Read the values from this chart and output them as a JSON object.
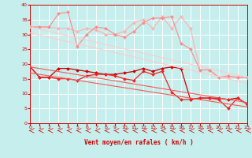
{
  "xlabel": "Vent moyen/en rafales ( km/h )",
  "xlim": [
    0,
    23
  ],
  "ylim": [
    0,
    40
  ],
  "yticks": [
    0,
    5,
    10,
    15,
    20,
    25,
    30,
    35,
    40
  ],
  "xticks": [
    0,
    1,
    2,
    3,
    4,
    5,
    6,
    7,
    8,
    9,
    10,
    11,
    12,
    13,
    14,
    15,
    16,
    17,
    18,
    19,
    20,
    21,
    22,
    23
  ],
  "bg_color": "#c5eeec",
  "grid_color": "#ffffff",
  "series": [
    {
      "x": [
        0,
        1,
        2,
        3,
        4,
        5,
        6,
        7,
        8,
        9,
        10,
        11,
        12,
        13,
        14,
        15,
        16,
        17,
        18,
        19,
        20,
        21,
        22,
        23
      ],
      "y": [
        32.5,
        32.5,
        32.5,
        32.0,
        32.0,
        31.0,
        32.0,
        31.5,
        30.0,
        30.0,
        31.0,
        34.0,
        35.0,
        32.0,
        36.0,
        32.0,
        36.0,
        32.0,
        18.0,
        18.0,
        15.5,
        15.5,
        15.5,
        15.5
      ],
      "color": "#ffb0b0",
      "marker": "D",
      "markersize": 2,
      "linewidth": 0.8
    },
    {
      "x": [
        0,
        1,
        2,
        3,
        4,
        5,
        6,
        7,
        8,
        9,
        10,
        11,
        12,
        13,
        14,
        15,
        16,
        17,
        18,
        19,
        20,
        21,
        22,
        23
      ],
      "y": [
        32.5,
        32.5,
        32.5,
        37.0,
        37.5,
        26.0,
        30.0,
        32.5,
        32.0,
        30.0,
        29.0,
        31.0,
        34.0,
        35.5,
        35.5,
        36.0,
        27.0,
        25.0,
        18.0,
        18.0,
        15.5,
        16.0,
        15.5,
        15.5
      ],
      "color": "#ff8888",
      "marker": "D",
      "markersize": 2,
      "linewidth": 0.8
    },
    {
      "x": [
        0,
        1,
        2,
        3,
        4,
        5,
        6,
        7,
        8,
        9,
        10,
        11,
        12,
        13,
        14,
        15,
        16,
        17,
        18,
        19,
        20,
        21,
        22,
        23
      ],
      "y": [
        19.0,
        15.5,
        15.5,
        18.5,
        18.5,
        18.0,
        17.5,
        17.0,
        16.5,
        16.5,
        17.0,
        17.5,
        18.5,
        17.5,
        18.5,
        19.0,
        18.5,
        8.0,
        8.5,
        8.5,
        8.5,
        8.0,
        8.5,
        6.5
      ],
      "color": "#cc0000",
      "marker": "D",
      "markersize": 2,
      "linewidth": 0.9
    },
    {
      "x": [
        0,
        1,
        2,
        3,
        4,
        5,
        6,
        7,
        8,
        9,
        10,
        11,
        12,
        13,
        14,
        15,
        16,
        17,
        18,
        19,
        20,
        21,
        22,
        23
      ],
      "y": [
        19.0,
        15.5,
        15.5,
        15.0,
        15.0,
        14.5,
        16.0,
        16.5,
        16.5,
        16.0,
        15.0,
        14.5,
        17.5,
        16.5,
        17.5,
        10.5,
        8.0,
        8.0,
        8.5,
        8.5,
        8.0,
        5.0,
        8.5,
        6.5
      ],
      "color": "#ee2222",
      "marker": "D",
      "markersize": 2,
      "linewidth": 0.9
    },
    {
      "x": [
        0,
        23
      ],
      "y": [
        32.5,
        15.5
      ],
      "color": "#ffcccc",
      "marker": null,
      "markersize": 0,
      "linewidth": 0.8
    },
    {
      "x": [
        0,
        23
      ],
      "y": [
        30.5,
        13.5
      ],
      "color": "#ffcccc",
      "marker": null,
      "markersize": 0,
      "linewidth": 0.8
    },
    {
      "x": [
        0,
        23
      ],
      "y": [
        19.0,
        7.0
      ],
      "color": "#ff5555",
      "marker": null,
      "markersize": 0,
      "linewidth": 0.8
    },
    {
      "x": [
        0,
        23
      ],
      "y": [
        17.0,
        5.5
      ],
      "color": "#ff5555",
      "marker": null,
      "markersize": 0,
      "linewidth": 0.8
    }
  ]
}
